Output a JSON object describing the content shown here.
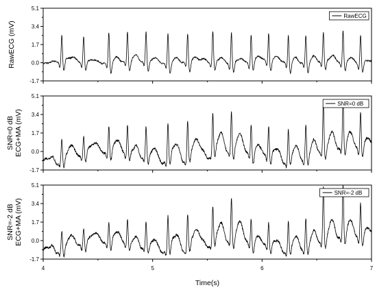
{
  "chart_data": [
    {
      "type": "line",
      "ylabel_lines": [
        "RawECG (mV)"
      ],
      "legend": "RawECG",
      "legend_position": "top-right",
      "yticks": [
        "-1.7",
        "0.0",
        "1.7",
        "3.4",
        "5.1"
      ],
      "ylim": [
        -1.7,
        5.1
      ],
      "xlim": [
        4,
        7
      ],
      "show_xticklabels": false,
      "series": [
        {
          "name": "RawECG",
          "mode": "raw",
          "beats": [
            [
              4.17,
              2.6
            ],
            [
              4.37,
              2.4
            ],
            [
              4.6,
              3.0
            ],
            [
              4.77,
              2.8
            ],
            [
              4.94,
              2.8
            ],
            [
              5.14,
              2.9
            ],
            [
              5.32,
              2.7
            ],
            [
              5.55,
              2.9
            ],
            [
              5.72,
              3.0
            ],
            [
              5.9,
              2.6
            ],
            [
              6.06,
              2.7
            ],
            [
              6.24,
              2.7
            ],
            [
              6.4,
              2.6
            ],
            [
              6.56,
              2.7
            ],
            [
              6.74,
              2.9
            ],
            [
              6.9,
              2.8
            ]
          ]
        }
      ]
    },
    {
      "type": "line",
      "ylabel_lines": [
        "SNR=0 dB",
        "ECG+MA (mV)"
      ],
      "legend": "SNR=0 dB",
      "legend_position": "top-right",
      "yticks": [
        "-1.7",
        "0.0",
        "1.7",
        "3.4",
        "5.1"
      ],
      "ylim": [
        -1.7,
        5.1
      ],
      "xlim": [
        4,
        7
      ],
      "show_xticklabels": false,
      "series": [
        {
          "name": "SNR=0 dB",
          "mode": "noisy",
          "beats": [
            [
              4.17,
              1.8
            ],
            [
              4.37,
              1.8
            ],
            [
              4.6,
              2.5
            ],
            [
              4.77,
              2.6
            ],
            [
              4.94,
              2.6
            ],
            [
              5.14,
              3.4
            ],
            [
              5.32,
              3.3
            ],
            [
              5.55,
              3.4
            ],
            [
              5.72,
              3.7
            ],
            [
              5.9,
              2.9
            ],
            [
              6.06,
              2.8
            ],
            [
              6.24,
              2.7
            ],
            [
              6.4,
              3.1
            ],
            [
              6.56,
              4.6
            ],
            [
              6.74,
              4.6
            ],
            [
              6.9,
              3.6
            ]
          ]
        }
      ]
    },
    {
      "type": "line",
      "ylabel_lines": [
        "SNR=-2 dB",
        "ECG+MA (mV)"
      ],
      "legend": "SNR=-2 dB",
      "legend_position": "top-right",
      "yticks": [
        "-1.7",
        "0.0",
        "1.7",
        "3.4",
        "5.1"
      ],
      "ylim": [
        -1.7,
        5.1
      ],
      "xlim": [
        4,
        7
      ],
      "show_xticklabels": true,
      "series": [
        {
          "name": "SNR=-2 dB",
          "mode": "noisy",
          "beats": [
            [
              4.17,
              1.6
            ],
            [
              4.37,
              1.5
            ],
            [
              4.6,
              1.9
            ],
            [
              4.77,
              2.1
            ],
            [
              4.94,
              2.1
            ],
            [
              5.14,
              3.0
            ],
            [
              5.32,
              2.9
            ],
            [
              5.55,
              3.1
            ],
            [
              5.72,
              3.9
            ],
            [
              5.9,
              2.4
            ],
            [
              6.06,
              2.2
            ],
            [
              6.24,
              2.4
            ],
            [
              6.4,
              2.6
            ],
            [
              6.56,
              4.9
            ],
            [
              6.74,
              4.9
            ],
            [
              6.9,
              3.4
            ]
          ]
        }
      ]
    }
  ],
  "xticks": [
    "4",
    "5",
    "6",
    "7"
  ],
  "xlabel": "Time(s)"
}
